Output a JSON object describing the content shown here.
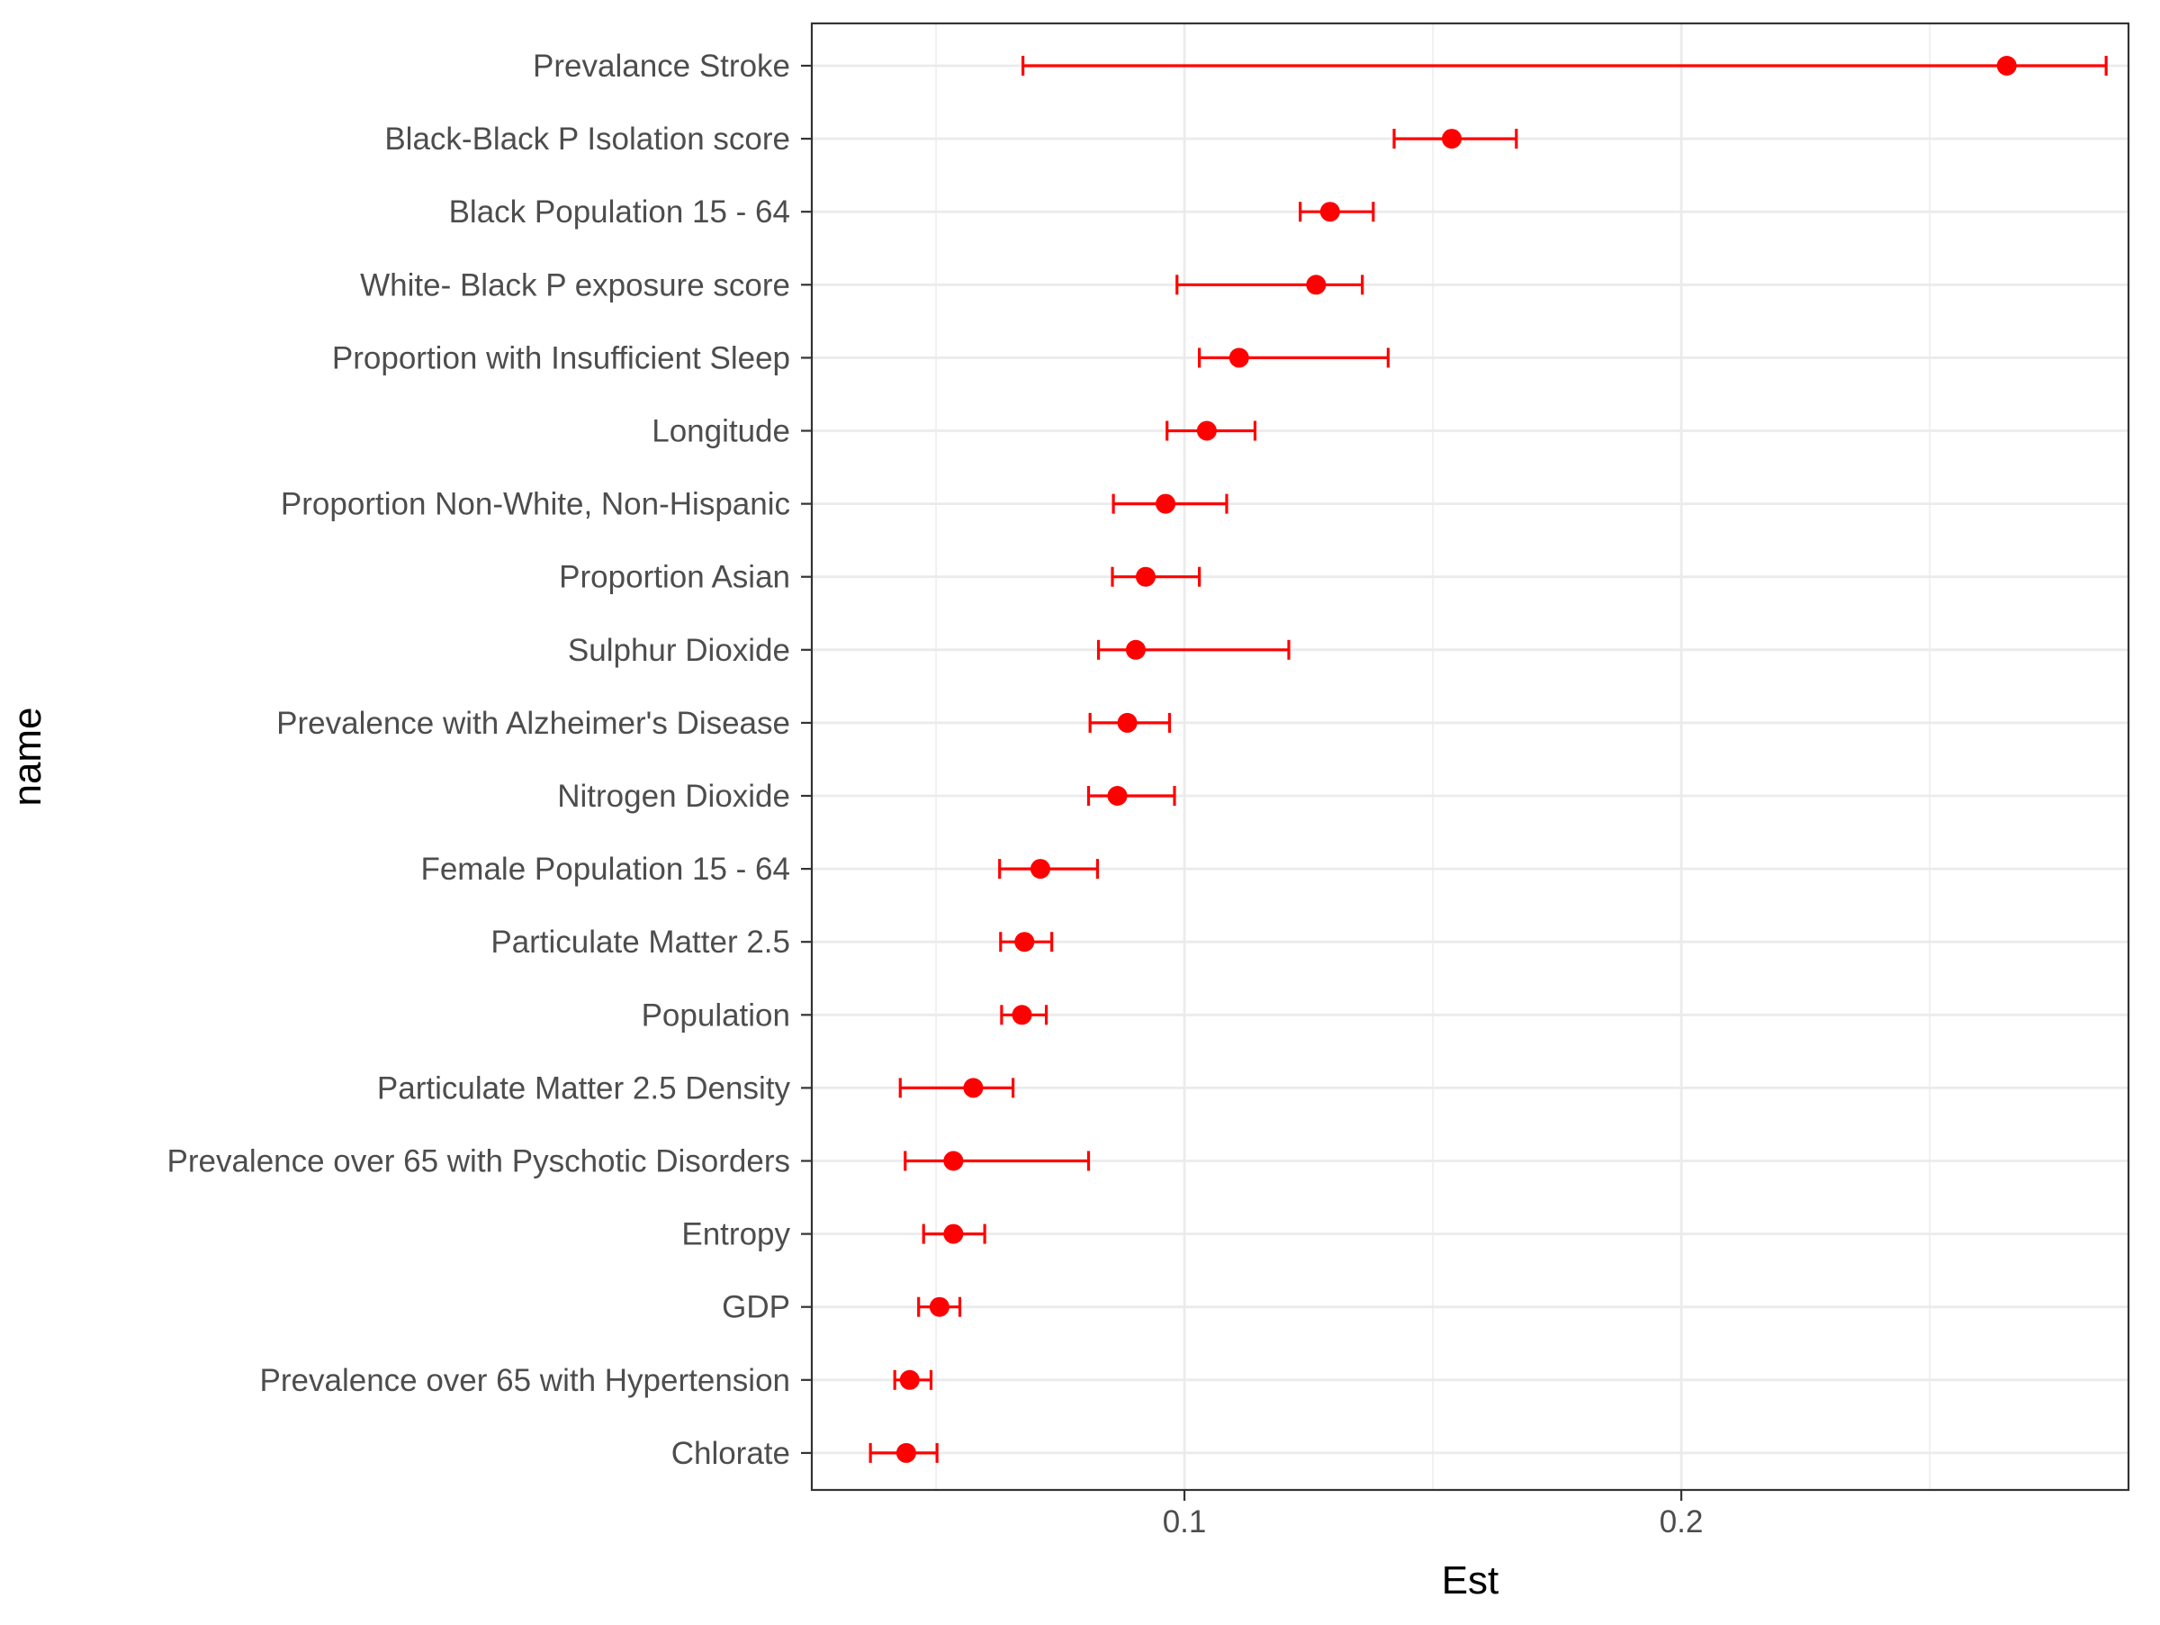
{
  "chart_data": {
    "type": "errorbar",
    "orientation": "horizontal",
    "xlabel": "Est",
    "ylabel": "name",
    "xlim": [
      0.025,
      0.29
    ],
    "x_ticks": [
      0.1,
      0.2
    ],
    "x_tick_labels": [
      "0.1",
      "0.2"
    ],
    "grid": true,
    "point_color": "#ff0000",
    "rows": [
      {
        "name": "Prevalance Stroke",
        "est": 0.2655,
        "lo": 0.0675,
        "hi": 0.2855
      },
      {
        "name": "Black-Black P Isolation score",
        "est": 0.1538,
        "lo": 0.1422,
        "hi": 0.1668
      },
      {
        "name": "Black Population 15 - 64",
        "est": 0.1293,
        "lo": 0.1233,
        "hi": 0.138
      },
      {
        "name": "White- Black P exposure score",
        "est": 0.1265,
        "lo": 0.0985,
        "hi": 0.1358
      },
      {
        "name": "Proportion with Insufficient Sleep",
        "est": 0.111,
        "lo": 0.103,
        "hi": 0.141
      },
      {
        "name": "Longitude",
        "est": 0.1045,
        "lo": 0.0965,
        "hi": 0.1142
      },
      {
        "name": "Proportion Non-White, Non-Hispanic",
        "est": 0.0962,
        "lo": 0.0857,
        "hi": 0.1085
      },
      {
        "name": "Proportion Asian",
        "est": 0.0922,
        "lo": 0.0855,
        "hi": 0.103
      },
      {
        "name": "Sulphur Dioxide",
        "est": 0.0902,
        "lo": 0.0827,
        "hi": 0.121
      },
      {
        "name": "Prevalence with Alzheimer's Disease",
        "est": 0.0885,
        "lo": 0.081,
        "hi": 0.097
      },
      {
        "name": "Nitrogen Dioxide",
        "est": 0.0865,
        "lo": 0.0807,
        "hi": 0.098
      },
      {
        "name": "Female Population 15 - 64",
        "est": 0.071,
        "lo": 0.0628,
        "hi": 0.0825
      },
      {
        "name": "Particulate Matter 2.5",
        "est": 0.0678,
        "lo": 0.063,
        "hi": 0.0733
      },
      {
        "name": "Population",
        "est": 0.0673,
        "lo": 0.0632,
        "hi": 0.0722
      },
      {
        "name": "Particulate Matter 2.5 Density",
        "est": 0.0575,
        "lo": 0.0428,
        "hi": 0.0655
      },
      {
        "name": "Prevalence over 65 with Pyschotic Disorders",
        "est": 0.0535,
        "lo": 0.0438,
        "hi": 0.0807
      },
      {
        "name": "Entropy",
        "est": 0.0535,
        "lo": 0.0475,
        "hi": 0.0598
      },
      {
        "name": "GDP",
        "est": 0.0507,
        "lo": 0.0465,
        "hi": 0.0548
      },
      {
        "name": "Prevalence over 65 with Hypertension",
        "est": 0.0447,
        "lo": 0.0417,
        "hi": 0.049
      },
      {
        "name": "Chlorate",
        "est": 0.044,
        "lo": 0.0368,
        "hi": 0.0502
      }
    ]
  }
}
